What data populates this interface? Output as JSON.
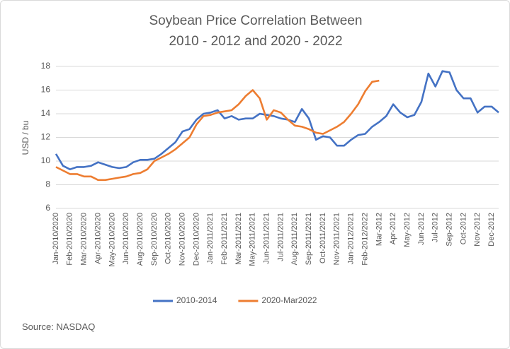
{
  "chart_data": {
    "type": "line",
    "title": [
      "Soybean Price Correlation Between",
      "2010 - 2012 and 2020 - 2022"
    ],
    "y_label": "USD / bu",
    "source": "Source: NASDAQ",
    "categories": [
      "Jan-2010/2020",
      null,
      "Feb-2010/2020",
      null,
      "Mar-2010/2020",
      null,
      "Apr-2010/2020",
      null,
      "May-2010/2020",
      null,
      "Jun-2010/2020",
      null,
      "Aug-2010/2020",
      null,
      "Sep-2010/2020",
      null,
      "Oct-2010/2020",
      null,
      "Nov-2010/2020",
      null,
      "Dec-2010/2020",
      null,
      "Jan-2011/2021",
      null,
      "Feb-2011/2021",
      null,
      "Mar-2011/2021",
      null,
      "May-2011/2021",
      null,
      "Jun-2011/2021",
      null,
      "Jul-2011/2021",
      null,
      "Aug-2011/2021",
      null,
      "Sep-2011/2021",
      null,
      "Oct-2011/2021",
      null,
      "Nov-2011/2021",
      null,
      "Jan-2012/2021",
      null,
      "Feb-2012/2022",
      null,
      "Mar-2012",
      null,
      "Apr-2012",
      null,
      "May-2012",
      null,
      "Jun-2012",
      null,
      "Jul-2012",
      null,
      "Sep-2012",
      null,
      "Oct-2012",
      null,
      "Nov-2012",
      null,
      "Dec-2012",
      null
    ],
    "series": [
      {
        "name": "2010-2014",
        "color": "#4472c4",
        "values": [
          10.6,
          9.6,
          9.3,
          9.5,
          9.5,
          9.6,
          9.9,
          9.7,
          9.5,
          9.4,
          9.5,
          9.9,
          10.1,
          10.1,
          10.2,
          10.6,
          11.1,
          11.6,
          12.5,
          12.7,
          13.5,
          14.0,
          14.1,
          14.3,
          13.6,
          13.8,
          13.5,
          13.6,
          13.6,
          14.0,
          13.9,
          13.8,
          13.6,
          13.5,
          13.3,
          14.4,
          13.6,
          11.8,
          12.1,
          12.0,
          11.3,
          11.3,
          11.8,
          12.2,
          12.3,
          12.9,
          13.3,
          13.8,
          14.8,
          14.1,
          13.7,
          13.9,
          15.0,
          17.4,
          16.3,
          17.6,
          17.5,
          16.0,
          15.3,
          15.3,
          14.1,
          14.6,
          14.6,
          14.1
        ]
      },
      {
        "name": "2020-Mar2022",
        "color": "#ed7d31",
        "values": [
          9.5,
          9.2,
          8.9,
          8.9,
          8.7,
          8.7,
          8.4,
          8.4,
          8.5,
          8.6,
          8.7,
          8.9,
          9.0,
          9.3,
          10.0,
          10.3,
          10.6,
          11.0,
          11.5,
          12.0,
          13.1,
          13.8,
          13.9,
          14.1,
          14.2,
          14.3,
          14.8,
          15.5,
          16.0,
          15.3,
          13.5,
          14.3,
          14.1,
          13.5,
          13.0,
          12.9,
          12.7,
          12.4,
          12.3,
          12.6,
          12.9,
          13.3,
          14.0,
          14.8,
          15.9,
          16.7,
          16.8,
          null,
          null,
          null,
          null,
          null,
          null,
          null,
          null,
          null,
          null,
          null,
          null,
          null,
          null,
          null,
          null,
          null
        ]
      }
    ],
    "ylim": [
      6,
      18
    ],
    "yticks": [
      6,
      8,
      10,
      12,
      14,
      16,
      18
    ],
    "grid": true,
    "legend": "bottom"
  }
}
